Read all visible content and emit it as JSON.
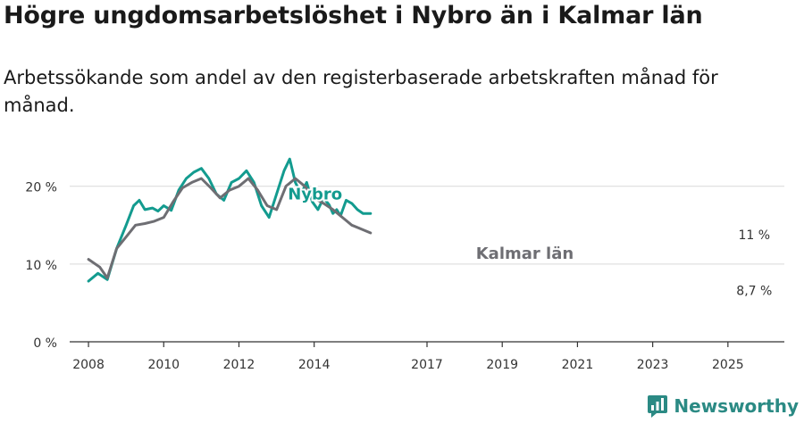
{
  "title": "Högre ungdomsarbetslöshet i Nybro än i Kalmar län",
  "subtitle": "Arbetssökande som andel av den registerbaserade arbetskraften månad för månad.",
  "brand": {
    "name": "Newsworthy",
    "color": "#2b8a84"
  },
  "colors": {
    "nybro": "#139b8f",
    "kalmar": "#6e6e73",
    "grid": "#d9d9d9",
    "axis": "#333333"
  },
  "chart_data": {
    "type": "line",
    "title": "Högre ungdomsarbetslöshet i Nybro än i Kalmar län",
    "xlabel": "",
    "ylabel": "",
    "xlim": [
      2007.5,
      2026.5
    ],
    "ylim": [
      0,
      21
    ],
    "y_ticks": [
      0,
      10,
      20
    ],
    "y_tick_labels": [
      "0 %",
      "10 %",
      "20 %"
    ],
    "x_ticks": [
      2008,
      2010,
      2012,
      2014,
      2017,
      2019,
      2021,
      2023,
      2025
    ],
    "x_tick_labels": [
      "2008",
      "2010",
      "2012",
      "2014",
      "2017",
      "2019",
      "2021",
      "2023",
      "2025"
    ],
    "series": [
      {
        "name": "Nybro",
        "label": "Nybro",
        "end_label": "11 %",
        "color": "#139b8f",
        "points": [
          [
            2008.0,
            7.8
          ],
          [
            2008.25,
            8.8
          ],
          [
            2008.5,
            8.0
          ],
          [
            2008.75,
            12.0
          ],
          [
            2009.0,
            15.0
          ],
          [
            2009.2,
            17.5
          ],
          [
            2009.35,
            18.2
          ],
          [
            2009.5,
            17.0
          ],
          [
            2009.7,
            17.2
          ],
          [
            2009.85,
            16.8
          ],
          [
            2010.0,
            17.5
          ],
          [
            2010.2,
            16.9
          ],
          [
            2010.4,
            19.5
          ],
          [
            2010.6,
            21.0
          ],
          [
            2010.8,
            21.8
          ],
          [
            2011.0,
            22.3
          ],
          [
            2011.2,
            21.0
          ],
          [
            2011.4,
            19.0
          ],
          [
            2011.6,
            18.2
          ],
          [
            2011.8,
            20.5
          ],
          [
            2012.0,
            21.0
          ],
          [
            2012.2,
            22.0
          ],
          [
            2012.4,
            20.5
          ],
          [
            2012.6,
            17.5
          ],
          [
            2012.8,
            16.0
          ],
          [
            2013.0,
            19.0
          ],
          [
            2013.2,
            22.0
          ],
          [
            2013.35,
            23.5
          ],
          [
            2013.5,
            20.5
          ],
          [
            2013.65,
            19.0
          ],
          [
            2013.8,
            20.5
          ],
          [
            2013.95,
            18.0
          ],
          [
            2014.1,
            17.0
          ],
          [
            2014.25,
            18.5
          ],
          [
            2014.4,
            17.6
          ],
          [
            2014.5,
            16.5
          ],
          [
            2014.6,
            17.0
          ],
          [
            2014.7,
            16.2
          ],
          [
            2014.85,
            18.2
          ],
          [
            2015.0,
            17.8
          ],
          [
            2015.15,
            17.0
          ],
          [
            2015.3,
            16.5
          ],
          [
            2015.5,
            16.5
          ]
        ]
      },
      {
        "name": "Kalmar län",
        "label": "Kalmar län",
        "end_label": "8,7 %",
        "color": "#6e6e73",
        "points": [
          [
            2008.0,
            10.6
          ],
          [
            2008.3,
            9.6
          ],
          [
            2008.5,
            8.2
          ],
          [
            2008.75,
            12.0
          ],
          [
            2009.0,
            13.5
          ],
          [
            2009.25,
            15.0
          ],
          [
            2009.5,
            15.2
          ],
          [
            2009.75,
            15.5
          ],
          [
            2010.0,
            16.0
          ],
          [
            2010.25,
            18.0
          ],
          [
            2010.5,
            19.8
          ],
          [
            2010.75,
            20.5
          ],
          [
            2011.0,
            21.0
          ],
          [
            2011.25,
            19.8
          ],
          [
            2011.5,
            18.5
          ],
          [
            2011.75,
            19.5
          ],
          [
            2012.0,
            20.0
          ],
          [
            2012.25,
            21.0
          ],
          [
            2012.5,
            19.5
          ],
          [
            2012.75,
            17.5
          ],
          [
            2013.0,
            17.0
          ],
          [
            2013.25,
            20.0
          ],
          [
            2013.5,
            21.0
          ],
          [
            2013.75,
            20.0
          ],
          [
            2014.0,
            18.5
          ],
          [
            2014.25,
            17.8
          ],
          [
            2014.5,
            17.0
          ],
          [
            2014.75,
            16.0
          ],
          [
            2015.0,
            15.0
          ],
          [
            2015.25,
            14.5
          ],
          [
            2015.5,
            14.0
          ]
        ]
      }
    ],
    "annotations": [
      {
        "text": "Nybro",
        "series": "Nybro",
        "at": [
          2013.3,
          18.3
        ]
      },
      {
        "text": "Kalmar län",
        "series": "Kalmar län",
        "at": [
          2018.3,
          10.7
        ]
      },
      {
        "text": "11 %",
        "series": "Nybro",
        "at": [
          2025.7,
          13.2
        ]
      },
      {
        "text": "8,7 %",
        "series": "Kalmar län",
        "at": [
          2025.7,
          6.0
        ]
      }
    ]
  }
}
